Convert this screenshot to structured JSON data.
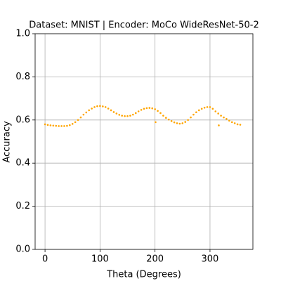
{
  "chart_data": {
    "type": "scatter",
    "title": "Dataset: MNIST | Encoder: MoCo WideResNet-50-2",
    "x_label": "Theta (Degrees)",
    "y_label": "Accuracy",
    "color": "orange",
    "grid": true,
    "xlim": [
      -18,
      378
    ],
    "ylim": [
      0,
      1
    ],
    "xticks": [
      0,
      100,
      200,
      300
    ],
    "yticks": [
      {
        "value": 0,
        "label": "0.0"
      },
      {
        "value": 0.2,
        "label": "0.2"
      },
      {
        "value": 0.4,
        "label": "0.4"
      },
      {
        "value": 0.6,
        "label": "0.6"
      },
      {
        "value": 0.8,
        "label": "0.8"
      },
      {
        "value": 1,
        "label": "1.0"
      }
    ],
    "x": [
      0,
      5,
      10,
      15,
      20,
      25,
      30,
      35,
      40,
      45,
      50,
      55,
      60,
      65,
      70,
      75,
      80,
      85,
      90,
      95,
      100,
      105,
      110,
      115,
      120,
      125,
      130,
      135,
      140,
      145,
      150,
      155,
      160,
      165,
      170,
      175,
      180,
      185,
      190,
      195,
      200,
      201,
      205,
      210,
      215,
      220,
      225,
      230,
      235,
      240,
      245,
      250,
      255,
      260,
      265,
      270,
      275,
      280,
      285,
      290,
      295,
      300,
      305,
      310,
      315,
      316,
      320,
      325,
      330,
      335,
      340,
      345,
      350,
      355
    ],
    "values": [
      0.58,
      0.577,
      0.575,
      0.574,
      0.573,
      0.572,
      0.572,
      0.572,
      0.573,
      0.576,
      0.582,
      0.59,
      0.6,
      0.612,
      0.625,
      0.635,
      0.645,
      0.653,
      0.66,
      0.664,
      0.665,
      0.663,
      0.66,
      0.653,
      0.645,
      0.637,
      0.63,
      0.624,
      0.62,
      0.618,
      0.618,
      0.62,
      0.625,
      0.632,
      0.64,
      0.647,
      0.652,
      0.655,
      0.656,
      0.654,
      0.65,
      0.59,
      0.642,
      0.632,
      0.62,
      0.61,
      0.602,
      0.595,
      0.589,
      0.585,
      0.583,
      0.585,
      0.591,
      0.6,
      0.612,
      0.625,
      0.636,
      0.645,
      0.652,
      0.657,
      0.66,
      0.66,
      0.652,
      0.64,
      0.63,
      0.575,
      0.62,
      0.612,
      0.605,
      0.597,
      0.59,
      0.585,
      0.58,
      0.578
    ]
  }
}
